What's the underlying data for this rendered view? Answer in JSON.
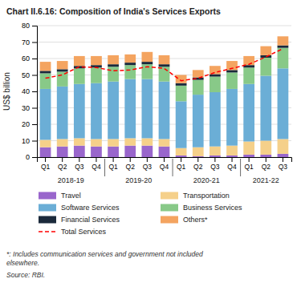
{
  "chart_data": {
    "type": "bar",
    "stacked": true,
    "title": "Chart II.6.16: Composition of India's Services Exports",
    "y_label": "US$ billion",
    "categories": [
      "Q1",
      "Q2",
      "Q3",
      "Q4",
      "Q1",
      "Q2",
      "Q3",
      "Q4",
      "Q1",
      "Q2",
      "Q3",
      "Q4",
      "Q1",
      "Q2",
      "Q3"
    ],
    "category_groups": [
      {
        "label": "2018-19",
        "size": 4
      },
      {
        "label": "2019-20",
        "size": 4
      },
      {
        "label": "2020-21",
        "size": 4
      },
      {
        "label": "2021-22",
        "size": 3
      }
    ],
    "series": [
      {
        "name": "Travel",
        "type": "bar",
        "color": "#9966CC",
        "values": [
          6.0,
          6.5,
          7.0,
          6.5,
          6.5,
          7.0,
          7.0,
          6.5,
          1.0,
          0.5,
          1.0,
          1.0,
          1.5,
          1.5,
          2.0
        ]
      },
      {
        "name": "Transportation",
        "type": "bar",
        "color": "#F5D08A",
        "values": [
          4.5,
          4.5,
          4.5,
          4.5,
          4.5,
          4.5,
          4.5,
          4.5,
          4.5,
          5.5,
          5.5,
          6.0,
          8.0,
          8.5,
          9.0
        ]
      },
      {
        "name": "Software Services",
        "type": "bar",
        "color": "#6BAED6",
        "values": [
          31.0,
          32.0,
          33.0,
          34.0,
          35.0,
          36.0,
          36.0,
          35.0,
          28.5,
          32.0,
          33.0,
          34.5,
          35.0,
          39.5,
          43.0
        ]
      },
      {
        "name": "Business Services",
        "type": "bar",
        "color": "#88C988",
        "values": [
          9.5,
          9.0,
          9.5,
          9.5,
          9.0,
          8.5,
          9.0,
          9.0,
          9.5,
          9.0,
          9.5,
          10.0,
          10.0,
          11.0,
          12.5
        ]
      },
      {
        "name": "Financial Services",
        "type": "bar",
        "color": "#1B2A3B",
        "values": [
          1.5,
          1.5,
          1.5,
          1.5,
          1.5,
          1.5,
          1.5,
          1.5,
          1.5,
          1.5,
          1.5,
          1.5,
          1.5,
          1.5,
          1.5
        ]
      },
      {
        "name": "Others*",
        "type": "bar",
        "color": "#F4A460",
        "values": [
          5.5,
          5.0,
          6.0,
          5.5,
          5.5,
          5.0,
          6.0,
          5.5,
          5.0,
          4.5,
          5.0,
          5.5,
          5.5,
          5.5,
          5.5
        ]
      },
      {
        "name": "Total Services",
        "type": "line",
        "color": "red",
        "line_style": "dashed",
        "values": [
          48.0,
          50.0,
          55.0,
          54.5,
          52.5,
          53.0,
          55.0,
          54.0,
          46.5,
          48.0,
          51.5,
          54.0,
          56.5,
          61.0,
          66.0
        ]
      }
    ],
    "ylim": [
      0,
      80
    ],
    "yticks": [
      0,
      10,
      20,
      30,
      40,
      50,
      60,
      70,
      80
    ],
    "grid": true,
    "legend": "bottom",
    "annotations": [
      "*: Includes communication services and government not included\nelsewhere.",
      "Source: RBI."
    ]
  }
}
